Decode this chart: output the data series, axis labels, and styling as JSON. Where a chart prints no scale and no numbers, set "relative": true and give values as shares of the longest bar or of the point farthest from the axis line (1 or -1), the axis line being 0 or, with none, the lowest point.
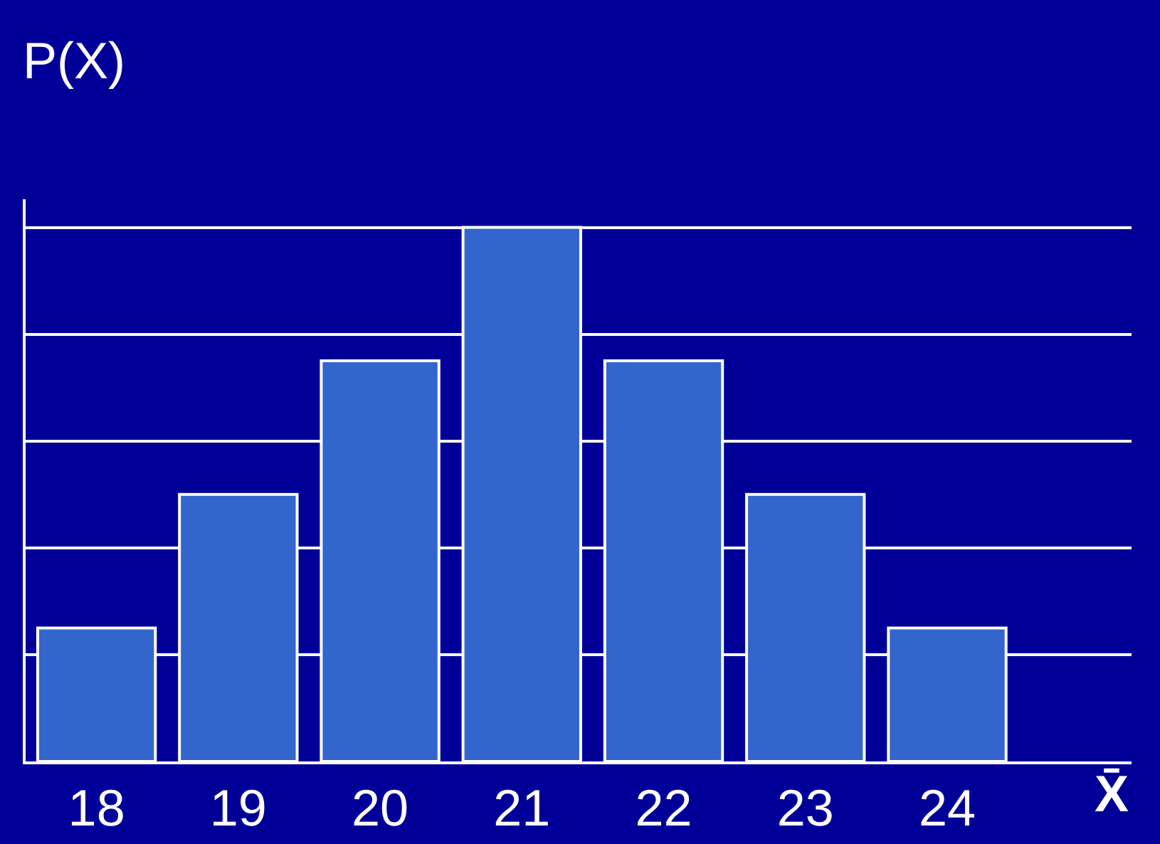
{
  "chart_data": {
    "type": "bar",
    "relative": true,
    "ylabel": "P(X)",
    "xlabel": "X̄",
    "categories": [
      "18",
      "19",
      "20",
      "21",
      "22",
      "23",
      "24"
    ],
    "values": [
      0.25,
      0.5,
      0.75,
      1,
      0.75,
      0.5,
      0.25
    ],
    "color": "#3366cc",
    "grid": "y"
  }
}
